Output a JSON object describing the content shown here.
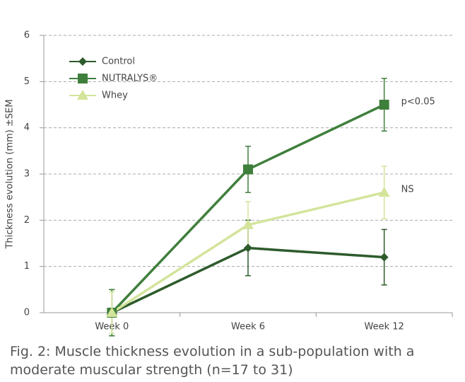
{
  "chart_data": {
    "type": "line",
    "title": "Fig. 2: Muscle thickness evolution in a sub-population with a moderate muscular strength (n=17 to 31)",
    "y_label": "Thickness evolution (mm) ±SEM",
    "categories": [
      "Week 0",
      "Week 6",
      "Week 12"
    ],
    "series": [
      {
        "name": "Control",
        "color": "#2e5b2c",
        "marker": "diamond",
        "values": [
          0,
          1.4,
          1.2
        ],
        "errors": [
          0.5,
          0.6,
          0.6
        ]
      },
      {
        "name": "NUTRALYS®",
        "color": "#3f7f3c",
        "marker": "square",
        "values": [
          0,
          3.1,
          4.5
        ],
        "errors": [
          0.5,
          0.5,
          0.57
        ],
        "annotation": "p<0.05"
      },
      {
        "name": "Whey",
        "color": "#d3e49b",
        "marker": "triangle",
        "values": [
          0,
          1.9,
          2.6
        ],
        "errors": [
          0.45,
          0.5,
          0.57
        ],
        "annotation": "NS"
      }
    ],
    "ylim": [
      0,
      6
    ],
    "yticks": [
      0,
      1,
      2,
      3,
      4,
      5,
      6
    ],
    "grid": true,
    "legend": "upper left"
  }
}
